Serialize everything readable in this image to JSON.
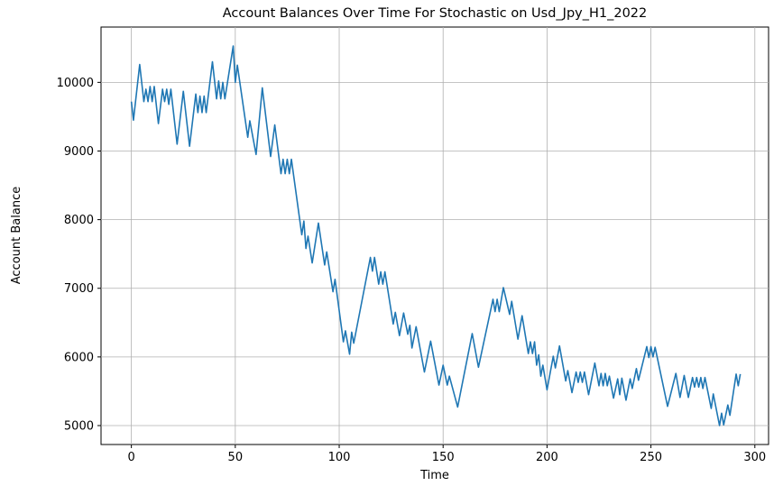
{
  "chart_data": {
    "type": "line",
    "title": "Account Balances Over Time For Stochastic on Usd_Jpy_H1_2022",
    "x_label": "Time",
    "y_label": "Account Balance",
    "grid": true,
    "xlim": [
      -14.6,
      306.6
    ],
    "ylim": [
      4724,
      10806
    ],
    "xticks": [
      0,
      50,
      100,
      150,
      200,
      250,
      300
    ],
    "yticks": [
      5000,
      6000,
      7000,
      8000,
      9000,
      10000
    ],
    "x": [
      0,
      1,
      4,
      6,
      7,
      8,
      9,
      10,
      11,
      13,
      15,
      16,
      17,
      18,
      19,
      22,
      25,
      28,
      31,
      32,
      33,
      34,
      35,
      36,
      39,
      41,
      42,
      43,
      44,
      45,
      49,
      50,
      51,
      56,
      57,
      60,
      63,
      67,
      69,
      72,
      73,
      74,
      75,
      76,
      77,
      82,
      83,
      84,
      85,
      87,
      90,
      93,
      94,
      97,
      98,
      102,
      103,
      105,
      106,
      107,
      115,
      116,
      117,
      119,
      120,
      121,
      122,
      126,
      127,
      129,
      131,
      133,
      134,
      135,
      137,
      141,
      144,
      148,
      150,
      152,
      153,
      157,
      164,
      167,
      174,
      175,
      176,
      177,
      179,
      182,
      183,
      186,
      188,
      191,
      192,
      193,
      194,
      195,
      196,
      197,
      198,
      200,
      203,
      204,
      206,
      209,
      210,
      212,
      214,
      215,
      216,
      217,
      218,
      220,
      223,
      225,
      226,
      227,
      228,
      229,
      230,
      232,
      234,
      235,
      236,
      238,
      240,
      241,
      243,
      244,
      248,
      249,
      250,
      251,
      252,
      258,
      262,
      264,
      266,
      268,
      270,
      271,
      272,
      273,
      274,
      275,
      276,
      279,
      280,
      283,
      284,
      285,
      287,
      288,
      291,
      292,
      293
    ],
    "series": [
      {
        "color": "#1f77b4",
        "values": [
          9720,
          9450,
          10260,
          9720,
          9900,
          9720,
          9940,
          9720,
          9940,
          9400,
          9900,
          9720,
          9900,
          9680,
          9900,
          9100,
          9870,
          9070,
          9830,
          9560,
          9800,
          9560,
          9800,
          9560,
          10300,
          9760,
          10020,
          9760,
          10000,
          9760,
          10530,
          10000,
          10250,
          9200,
          9440,
          8950,
          9920,
          8920,
          9380,
          8670,
          8880,
          8670,
          8880,
          8670,
          8880,
          7780,
          7980,
          7580,
          7760,
          7370,
          7950,
          7340,
          7530,
          6950,
          7130,
          6220,
          6380,
          6040,
          6360,
          6200,
          7450,
          7250,
          7450,
          7060,
          7240,
          7060,
          7240,
          6480,
          6650,
          6310,
          6640,
          6330,
          6460,
          6130,
          6440,
          5780,
          6230,
          5590,
          5880,
          5590,
          5720,
          5270,
          6340,
          5850,
          6840,
          6660,
          6840,
          6660,
          7010,
          6620,
          6810,
          6260,
          6600,
          6050,
          6220,
          6050,
          6220,
          5880,
          6030,
          5720,
          5880,
          5520,
          6010,
          5840,
          6160,
          5650,
          5800,
          5480,
          5780,
          5630,
          5780,
          5630,
          5780,
          5450,
          5910,
          5580,
          5760,
          5580,
          5760,
          5580,
          5720,
          5400,
          5680,
          5450,
          5690,
          5370,
          5680,
          5540,
          5830,
          5660,
          6150,
          5990,
          6150,
          6000,
          6140,
          5280,
          5760,
          5410,
          5730,
          5410,
          5700,
          5560,
          5700,
          5560,
          5700,
          5540,
          5700,
          5250,
          5460,
          5000,
          5180,
          5010,
          5300,
          5150,
          5750,
          5580,
          5750
        ]
      }
    ]
  }
}
